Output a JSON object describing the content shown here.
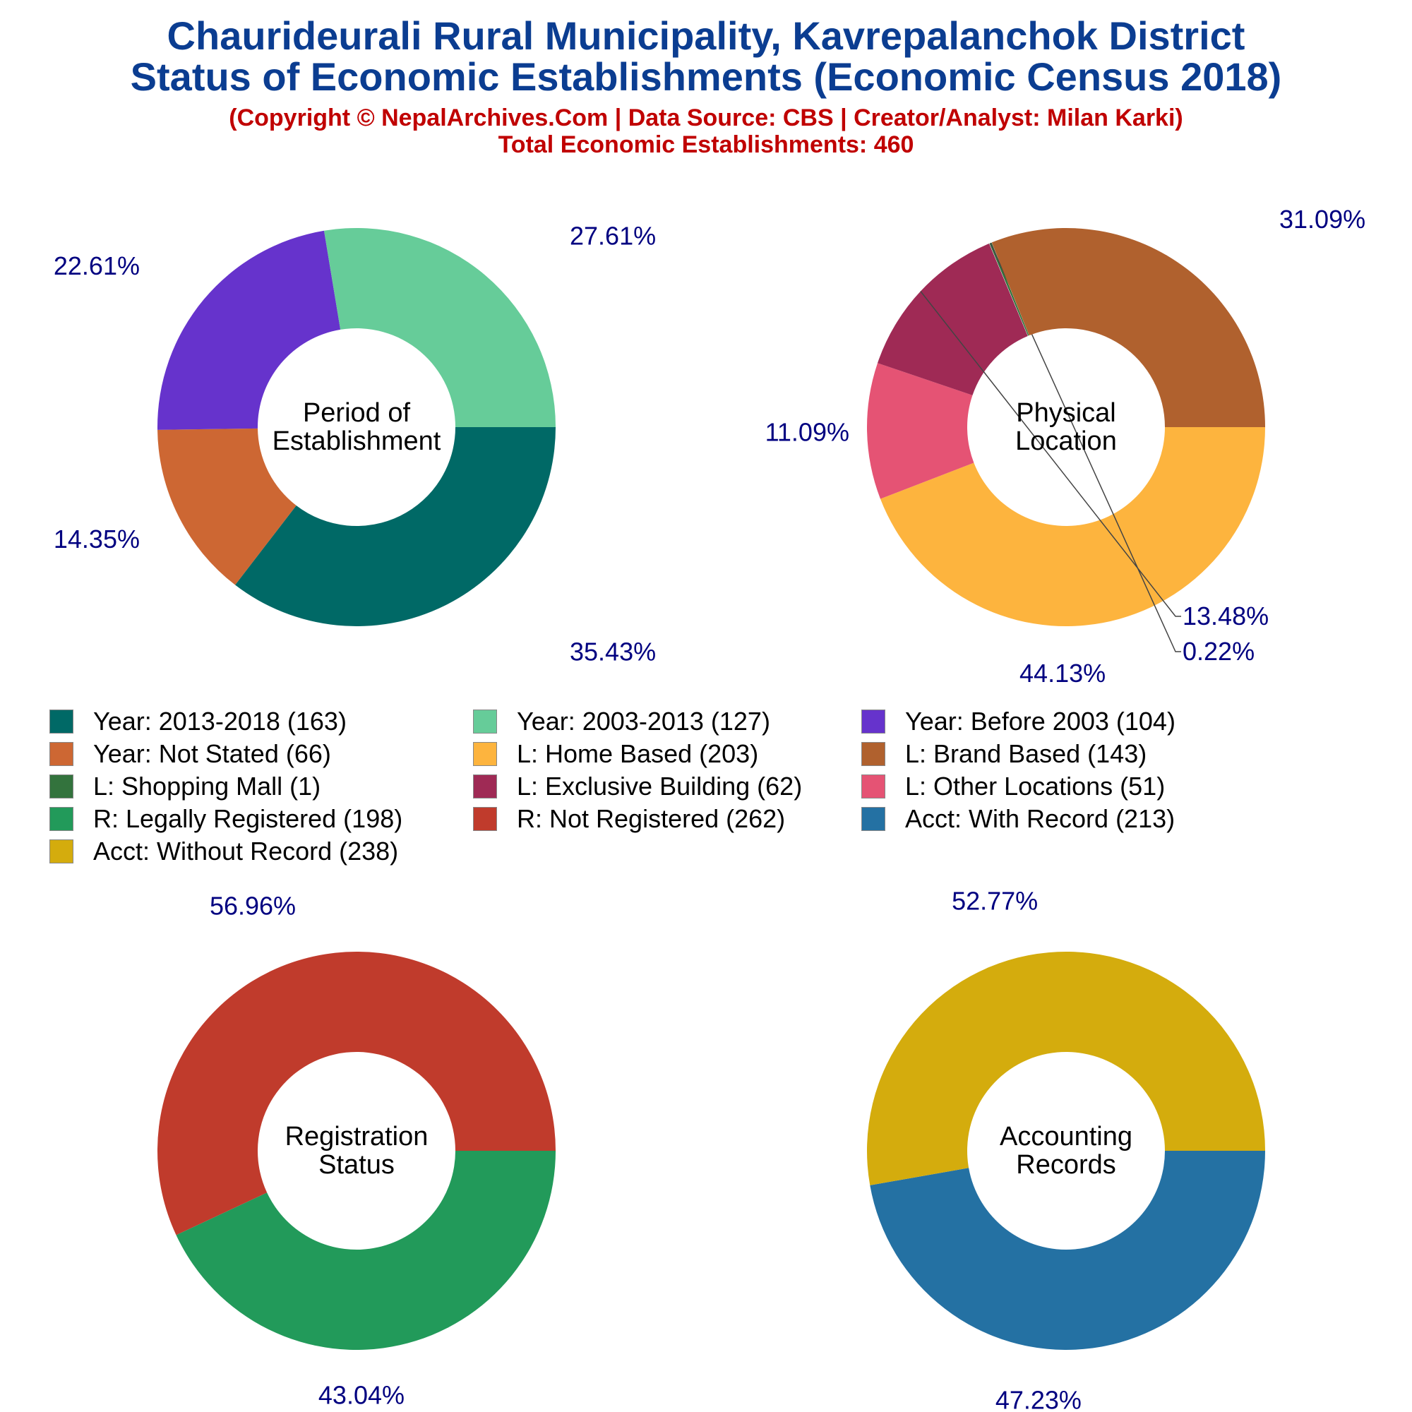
{
  "header": {
    "title_line1": "Chaurideurali Rural Municipality, Kavrepalanchok District",
    "title_line2": "Status of Economic Establishments (Economic Census 2018)",
    "subtitle_line1": "(Copyright © NepalArchives.Com | Data Source: CBS | Creator/Analyst: Milan Karki)",
    "subtitle_line2": "Total Economic Establishments: 460"
  },
  "label_color": "#000080",
  "chart_data": [
    {
      "type": "pie",
      "center_label": [
        "Period of",
        "Establishment"
      ],
      "slices": [
        {
          "label": "Year: 2013-2018",
          "count": 163,
          "pct_label": "35.43%",
          "color": "#006966"
        },
        {
          "label": "Year: Not Stated",
          "count": 66,
          "pct_label": "14.35%",
          "color": "#cd6733"
        },
        {
          "label": "Year: Before 2003",
          "count": 104,
          "pct_label": "22.61%",
          "color": "#6633cc"
        },
        {
          "label": "Year: 2003-2013",
          "count": 127,
          "pct_label": "27.61%",
          "color": "#66cc99"
        }
      ]
    },
    {
      "type": "pie",
      "center_label": [
        "Physical",
        "Location"
      ],
      "slices": [
        {
          "label": "L: Home Based",
          "count": 203,
          "pct_label": "44.13%",
          "color": "#fdb43e"
        },
        {
          "label": "L: Other Locations",
          "count": 51,
          "pct_label": "11.09%",
          "color": "#e55374"
        },
        {
          "label": "L: Exclusive Building",
          "count": 62,
          "pct_label": "13.48%",
          "color": "#9f2a55"
        },
        {
          "label": "L: Shopping Mall",
          "count": 1,
          "pct_label": "0.22%",
          "color": "#33733d"
        },
        {
          "label": "L: Brand Based",
          "count": 143,
          "pct_label": "31.09%",
          "color": "#b0612e"
        }
      ]
    },
    {
      "type": "pie",
      "center_label": [
        "Registration",
        "Status"
      ],
      "slices": [
        {
          "label": "R: Legally Registered",
          "count": 198,
          "pct_label": "43.04%",
          "color": "#229a5a"
        },
        {
          "label": "R: Not Registered",
          "count": 262,
          "pct_label": "56.96%",
          "color": "#c03b2c"
        }
      ]
    },
    {
      "type": "pie",
      "center_label": [
        "Accounting",
        "Records"
      ],
      "slices": [
        {
          "label": "Acct: With Record",
          "count": 213,
          "pct_label": "47.23%",
          "color": "#2471a3"
        },
        {
          "label": "Acct: Without Record",
          "count": 238,
          "pct_label": "52.77%",
          "color": "#d4ac0d"
        }
      ]
    }
  ],
  "legend": [
    {
      "text": "Year: 2013-2018 (163)",
      "color": "#006966"
    },
    {
      "text": "Year: 2003-2013 (127)",
      "color": "#66cc99"
    },
    {
      "text": "Year: Before 2003 (104)",
      "color": "#6633cc"
    },
    {
      "text": "Year: Not Stated (66)",
      "color": "#cd6733"
    },
    {
      "text": "L: Home Based (203)",
      "color": "#fdb43e"
    },
    {
      "text": "L: Brand Based (143)",
      "color": "#b0612e"
    },
    {
      "text": "L: Shopping Mall (1)",
      "color": "#33733d"
    },
    {
      "text": "L: Exclusive Building (62)",
      "color": "#9f2a55"
    },
    {
      "text": "L: Other Locations (51)",
      "color": "#e55374"
    },
    {
      "text": "R: Legally Registered (198)",
      "color": "#229a5a"
    },
    {
      "text": "R: Not Registered (262)",
      "color": "#c03b2c"
    },
    {
      "text": "Acct: With Record (213)",
      "color": "#2471a3"
    },
    {
      "text": "Acct: Without Record (238)",
      "color": "#d4ac0d"
    }
  ]
}
